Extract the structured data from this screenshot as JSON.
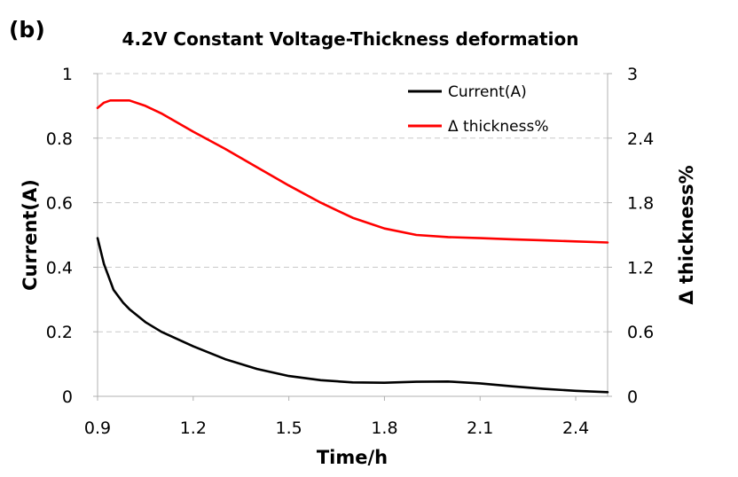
{
  "panel_label": "(b)",
  "chart_data": {
    "type": "line",
    "title": "4.2V Constant Voltage-Thickness deformation",
    "xlabel": "Time/h",
    "ylabel": "Current(A)",
    "y2label": "Δ thickness%",
    "xlim": [
      0.9,
      2.5
    ],
    "ylim": [
      0,
      1
    ],
    "y2lim": [
      0,
      3
    ],
    "xticks": [
      "0.9",
      "1.2",
      "1.5",
      "1.8",
      "2.1",
      "2.4"
    ],
    "yticks": [
      "0",
      "0.2",
      "0.4",
      "0.6",
      "0.8",
      "1"
    ],
    "y2ticks": [
      "0",
      "0.6",
      "1.2",
      "1.8",
      "2.4",
      "3"
    ],
    "grid": "horizontal dashed",
    "legend_position": "top-right",
    "series": [
      {
        "name": "Current(A)",
        "axis": "left",
        "color": "#000000",
        "x": [
          0.9,
          0.92,
          0.95,
          0.98,
          1.0,
          1.05,
          1.1,
          1.2,
          1.3,
          1.4,
          1.5,
          1.6,
          1.7,
          1.8,
          1.9,
          2.0,
          2.1,
          2.2,
          2.3,
          2.4,
          2.5
        ],
        "y": [
          0.49,
          0.41,
          0.33,
          0.29,
          0.27,
          0.23,
          0.2,
          0.155,
          0.115,
          0.085,
          0.063,
          0.05,
          0.043,
          0.042,
          0.045,
          0.046,
          0.04,
          0.031,
          0.023,
          0.017,
          0.013
        ]
      },
      {
        "name": "Δ thickness%",
        "axis": "right",
        "color": "#ff0000",
        "x": [
          0.9,
          0.92,
          0.94,
          0.96,
          1.0,
          1.05,
          1.1,
          1.2,
          1.3,
          1.4,
          1.5,
          1.6,
          1.7,
          1.8,
          1.9,
          2.0,
          2.1,
          2.2,
          2.3,
          2.4,
          2.5
        ],
        "y": [
          2.68,
          2.73,
          2.75,
          2.75,
          2.75,
          2.7,
          2.63,
          2.46,
          2.3,
          2.13,
          1.96,
          1.8,
          1.66,
          1.56,
          1.5,
          1.48,
          1.47,
          1.46,
          1.45,
          1.44,
          1.43
        ]
      }
    ]
  }
}
